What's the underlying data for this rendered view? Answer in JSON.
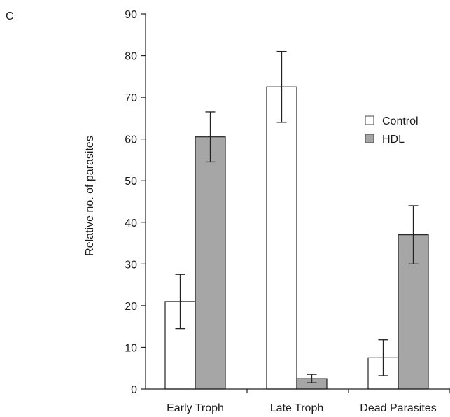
{
  "panel_label": "C",
  "chart_data": {
    "type": "bar",
    "title": "",
    "xlabel": "",
    "ylabel": "Relative no. of parasites",
    "ylim": [
      0,
      90
    ],
    "yticks": [
      0,
      10,
      20,
      30,
      40,
      50,
      60,
      70,
      80,
      90
    ],
    "categories": [
      "Early Troph",
      "Late Troph",
      "Dead Parasites"
    ],
    "series": [
      {
        "name": "Control",
        "color": "#ffffff",
        "values": [
          21,
          72.5,
          7.5
        ],
        "errors": [
          6.5,
          8.5,
          4.3
        ]
      },
      {
        "name": "HDL",
        "color": "#a6a6a6",
        "values": [
          60.5,
          2.5,
          37
        ],
        "errors": [
          6,
          1,
          7
        ]
      }
    ],
    "legend": "right",
    "grid": false
  }
}
